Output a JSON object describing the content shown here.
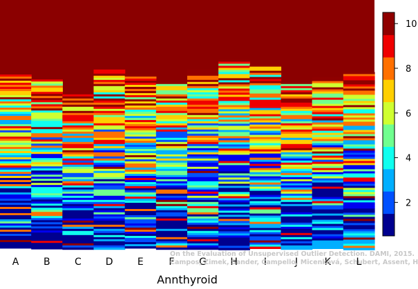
{
  "chart_data": {
    "type": "heatmap",
    "title": "",
    "xlabel": "Annthyroid",
    "ylabel": "",
    "categories": [
      "A",
      "B",
      "C",
      "D",
      "E",
      "F",
      "G",
      "H",
      "I",
      "J",
      "K",
      "L"
    ],
    "colorbar": {
      "range": [
        0.5,
        10.5
      ],
      "ticks": [
        2,
        4,
        6,
        8,
        10
      ],
      "levels": 10,
      "colormap": "jet",
      "colors": [
        "#00008f",
        "#0000f0",
        "#0050ff",
        "#00afff",
        "#10ffef",
        "#70ff8f",
        "#cfff30",
        "#ffcf00",
        "#ff7000",
        "#ef0000",
        "#8f0000"
      ]
    },
    "max_value_color": "#8b0000",
    "saturated_fraction": [
      0.3,
      0.32,
      0.38,
      0.28,
      0.3,
      0.33,
      0.28,
      0.24,
      0.26,
      0.33,
      0.31,
      0.29
    ],
    "grid": false,
    "legend": "colorbar at right"
  },
  "credit": {
    "line1": "On the Evaluation of Unsupervised Outlier Detection. DAMI, 2015.",
    "line2": "Campos, Zimek, Sander, Campello, Micenková, Schubert, Assent, Houle"
  }
}
